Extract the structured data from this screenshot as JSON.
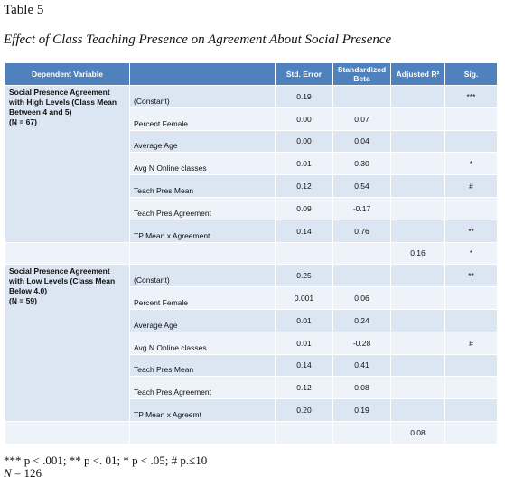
{
  "caption": {
    "number": "Table 5",
    "title": "Effect of Class Teaching Presence on Agreement About Social Presence"
  },
  "columns": {
    "dependent": "Dependent Variable",
    "predictor": "",
    "std_error": "Std. Error",
    "beta": "Standardized Beta",
    "adj_r2": "Adjusted R²",
    "sig": "Sig."
  },
  "groups": [
    {
      "label": "Social Presence Agreement with High Levels (Class Mean Between 4 and 5)",
      "n": "(N = 67)",
      "rows": [
        {
          "predictor": "(Constant)",
          "se": "0.19",
          "beta": "",
          "sig": "***"
        },
        {
          "predictor": "Percent Female",
          "se": "0.00",
          "beta": "0.07",
          "sig": ""
        },
        {
          "predictor": "Average Age",
          "se": "0.00",
          "beta": "0.04",
          "sig": ""
        },
        {
          "predictor": "Avg N Online classes",
          "se": "0.01",
          "beta": "0.30",
          "sig": "*"
        },
        {
          "predictor": "Teach Pres Mean",
          "se": "0.12",
          "beta": "0.54",
          "sig": "#"
        },
        {
          "predictor": "Teach Pres Agreement",
          "se": "0.09",
          "beta": "-0.17",
          "sig": ""
        },
        {
          "predictor": "TP Mean x Agreement",
          "se": "0.14",
          "beta": "0.76",
          "sig": "**"
        }
      ],
      "summary": {
        "adj_r2": "0.16",
        "sig": "*"
      }
    },
    {
      "label": "Social Presence Agreement with Low Levels (Class Mean Below 4.0)",
      "n": "(N = 59)",
      "rows": [
        {
          "predictor": "(Constant)",
          "se": "0.25",
          "beta": "",
          "sig": "**"
        },
        {
          "predictor": "Percent Female",
          "se": "0.001",
          "beta": "0.06",
          "sig": ""
        },
        {
          "predictor": "Average Age",
          "se": "0.01",
          "beta": "0.24",
          "sig": ""
        },
        {
          "predictor": "Avg N Online classes",
          "se": "0.01",
          "beta": "-0.28",
          "sig": "#"
        },
        {
          "predictor": "Teach Pres Mean",
          "se": "0.14",
          "beta": "0.41",
          "sig": ""
        },
        {
          "predictor": "Teach Pres Agreement",
          "se": "0.12",
          "beta": "0.08",
          "sig": ""
        },
        {
          "predictor": "TP Mean x Agreemt",
          "se": "0.20",
          "beta": "0.19",
          "sig": ""
        }
      ],
      "summary": {
        "adj_r2": "0.08",
        "sig": ""
      }
    }
  ],
  "notes": {
    "significance": "*** p < .001; ** p <. 01; * p < .05; # p.≤10",
    "n_label": "N",
    "n_value": " = 126"
  },
  "colors": {
    "header_bg": "#4f81bd",
    "row_bg": "#dce6f2",
    "row_alt_bg": "#eef3f9"
  }
}
